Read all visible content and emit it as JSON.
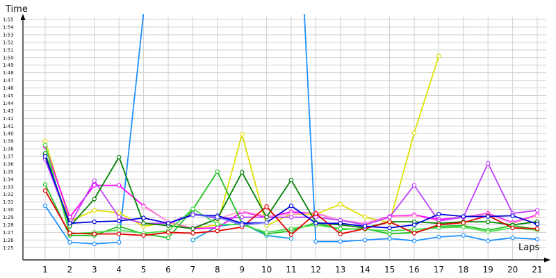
{
  "chart_data": {
    "type": "line",
    "ylabel": "Time",
    "xlabel": "Laps",
    "x": [
      1,
      2,
      3,
      4,
      5,
      6,
      7,
      8,
      9,
      10,
      11,
      12,
      13,
      14,
      15,
      16,
      17,
      18,
      19,
      20,
      21
    ],
    "y_ticks": [
      "1:25",
      "1:26",
      "1:27",
      "1:28",
      "1:29",
      "1:30",
      "1:31",
      "1:32",
      "1:33",
      "1:34",
      "1:35",
      "1:36",
      "1:37",
      "1:38",
      "1:39",
      "1:40",
      "1:41",
      "1:42",
      "1:43",
      "1:44",
      "1:45",
      "1:46",
      "1:47",
      "1:48",
      "1:49",
      "1:50",
      "1:51",
      "1:52",
      "1:53",
      "1:54",
      "1:55"
    ],
    "ylim_seconds": [
      84,
      117
    ],
    "grid": true,
    "markers": "hollow-circle",
    "series": [
      {
        "color": "#1e90ff",
        "values": [
          90.5,
          85.7,
          85.5,
          85.7,
          115.9,
          150,
          150,
          150,
          150,
          150,
          150,
          85.8,
          85.8,
          86.0,
          86.2,
          85.9,
          86.4,
          86.6,
          85.9,
          86.3,
          86.1
        ]
      },
      {
        "color": "#1ea0e0",
        "values": [
          null,
          null,
          null,
          null,
          null,
          null,
          86.0,
          87.8,
          88.2,
          86.6,
          86.2,
          null,
          null,
          null,
          null,
          null,
          null,
          null,
          null,
          null,
          null
        ]
      },
      {
        "color": "#e0e000",
        "values": [
          99.0,
          88.5,
          89.9,
          89.6,
          87.8,
          88.3,
          87.5,
          88.0,
          99.9,
          87.9,
          89.4,
          89.4,
          90.7,
          89.0,
          88.3,
          100.1,
          110.2,
          null,
          null,
          null,
          null
        ]
      },
      {
        "color": "#ff00ff",
        "values": [
          98.3,
          89.0,
          93.2,
          93.2,
          90.5,
          88.4,
          87.5,
          87.6,
          89.7,
          89.0,
          89.7,
          89.5,
          88.6,
          88.2,
          89.1,
          89.3,
          88.7,
          89.0,
          89.5,
          88.3,
          89.3
        ]
      },
      {
        "color": "#ff9ed0",
        "values": [
          null,
          null,
          null,
          null,
          90.4,
          88.4,
          87.6,
          88.8,
          89.8,
          89.1,
          89.4,
          89.6,
          88.6,
          88.2,
          89.0,
          89.2,
          88.5,
          89.0,
          89.4,
          88.2,
          89.2
        ]
      },
      {
        "color": "#c040ff",
        "values": [
          96.6,
          88.0,
          93.8,
          89.0,
          88.2,
          88.2,
          89.5,
          88.8,
          89.0,
          89.0,
          89.0,
          89.0,
          88.6,
          88.0,
          89.0,
          93.2,
          88.5,
          89.0,
          96.1,
          89.5,
          89.9
        ]
      },
      {
        "color": "#008000",
        "values": [
          97.4,
          87.8,
          91.4,
          96.9,
          88.2,
          87.9,
          87.5,
          88.8,
          94.9,
          89.0,
          93.9,
          88.3,
          88.0,
          87.6,
          88.4,
          88.4,
          88.2,
          88.4,
          88.4,
          88.0,
          88.4
        ]
      },
      {
        "color": "#22c022",
        "values": [
          93.3,
          86.6,
          86.6,
          87.8,
          86.8,
          86.3,
          90.0,
          95.0,
          88.2,
          86.8,
          87.2,
          88.3,
          87.4,
          87.5,
          86.8,
          87.0,
          87.8,
          87.9,
          87.3,
          87.9,
          87.4
        ]
      },
      {
        "color": "#44dd44",
        "values": [
          98.5,
          86.8,
          87.0,
          87.3,
          86.9,
          87.2,
          90.1,
          88.1,
          88.0,
          87.0,
          87.5,
          88.0,
          87.5,
          87.4,
          87.2,
          87.4,
          87.6,
          87.7,
          87.1,
          87.6,
          87.3
        ]
      },
      {
        "color": "#e00000",
        "values": [
          92.5,
          86.9,
          86.8,
          86.8,
          86.6,
          87.0,
          86.9,
          87.2,
          87.7,
          90.4,
          86.7,
          89.5,
          86.8,
          87.5,
          88.4,
          86.9,
          88.0,
          88.3,
          89.2,
          87.6,
          87.5
        ]
      },
      {
        "color": "#0000dd",
        "values": [
          97.0,
          88.2,
          88.4,
          88.5,
          88.9,
          88.2,
          89.3,
          89.2,
          88.2,
          88.3,
          90.5,
          88.2,
          88.2,
          87.8,
          87.6,
          88.0,
          89.4,
          89.1,
          89.1,
          89.2,
          88.1
        ]
      },
      {
        "color": "#7070ff",
        "values": [
          null,
          null,
          null,
          null,
          null,
          null,
          89.3,
          89.0,
          88.0,
          88.3,
          null,
          null,
          null,
          null,
          null,
          null,
          null,
          null,
          null,
          null,
          null
        ]
      }
    ]
  }
}
